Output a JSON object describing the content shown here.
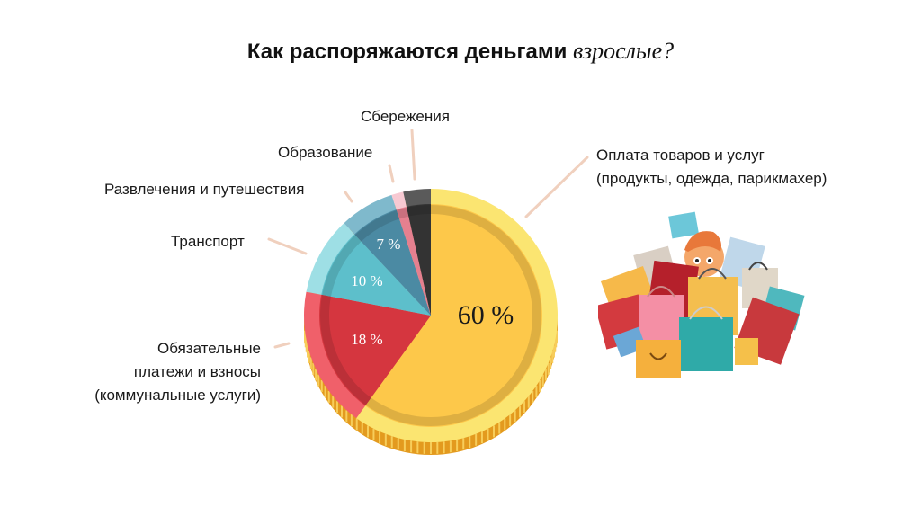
{
  "title": {
    "main": "Как распоряжаются деньгами",
    "italic": "взрослые?"
  },
  "chart_data": {
    "type": "pie",
    "title": "Как распоряжаются деньгами взрослые?",
    "categories": [
      "Оплата товаров и услуг (продукты, одежда, парикмахер)",
      "Обязательные платежи и взносы (коммунальные услуги)",
      "Транспорт",
      "Развлечения и путешествия",
      "Образование",
      "Сбережения"
    ],
    "values": [
      60,
      18,
      10,
      7,
      1.5,
      3.5
    ],
    "value_labels": [
      "60 %",
      "18 %",
      "10 %",
      "7 %",
      "",
      ""
    ],
    "colors": [
      "#FDC84A",
      "#D5363F",
      "#5DBFCB",
      "#4B8AA3",
      "#E5808F",
      "#333333"
    ],
    "rim_colors": [
      "#FBE571",
      "#F0606A",
      "#9EDFE5",
      "#7FB9CC",
      "#F7C9D2",
      "#5A5A5A"
    ],
    "start_angle_deg": 0,
    "direction": "clockwise",
    "legend_position": "callout labels"
  },
  "labels": {
    "goods_line1": "Оплата товаров и услуг",
    "goods_line2": "(продукты, одежда, парикмахер)",
    "mandatory_line1": "Обязательные",
    "mandatory_line2": "платежи и взносы",
    "mandatory_line3": "(коммунальные услуги)",
    "transport": "Транспорт",
    "entertainment": "Развлечения и путешествия",
    "education": "Образование",
    "savings": "Сбережения"
  },
  "illustration": {
    "description": "shopping-bags-person"
  }
}
